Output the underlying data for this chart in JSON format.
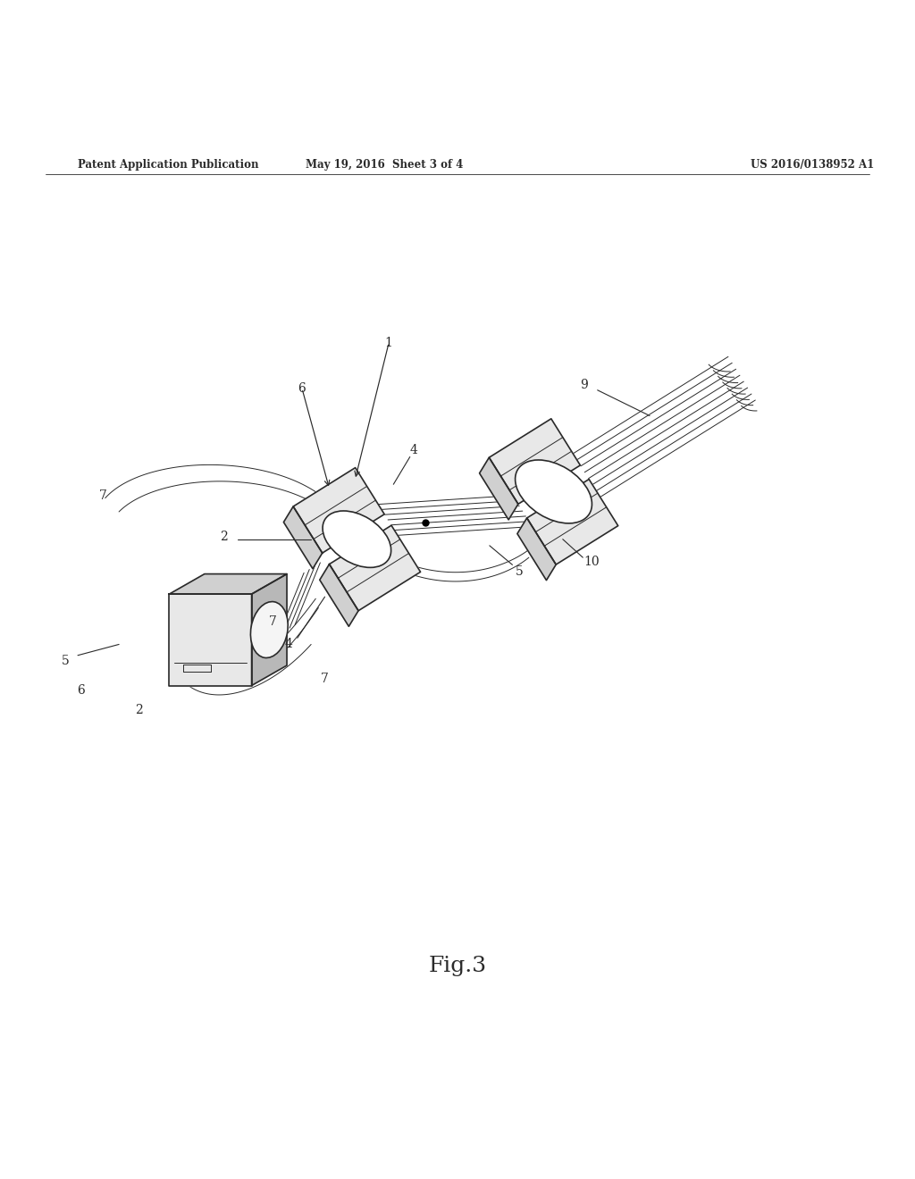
{
  "bg_color": "#ffffff",
  "line_color": "#2a2a2a",
  "header_left": "Patent Application Publication",
  "header_mid": "May 19, 2016  Sheet 3 of 4",
  "header_right": "US 2016/0138952 A1",
  "fig_label": "Fig.3",
  "lw_main": 1.2,
  "lw_thin": 0.7,
  "lw_hair": 0.5,
  "font_size_header": 8.5,
  "font_size_label": 10,
  "font_size_fig": 18,
  "gray_light": "#e8e8e8",
  "gray_mid": "#d0d0d0",
  "gray_dark": "#b8b8b8",
  "white": "#ffffff"
}
